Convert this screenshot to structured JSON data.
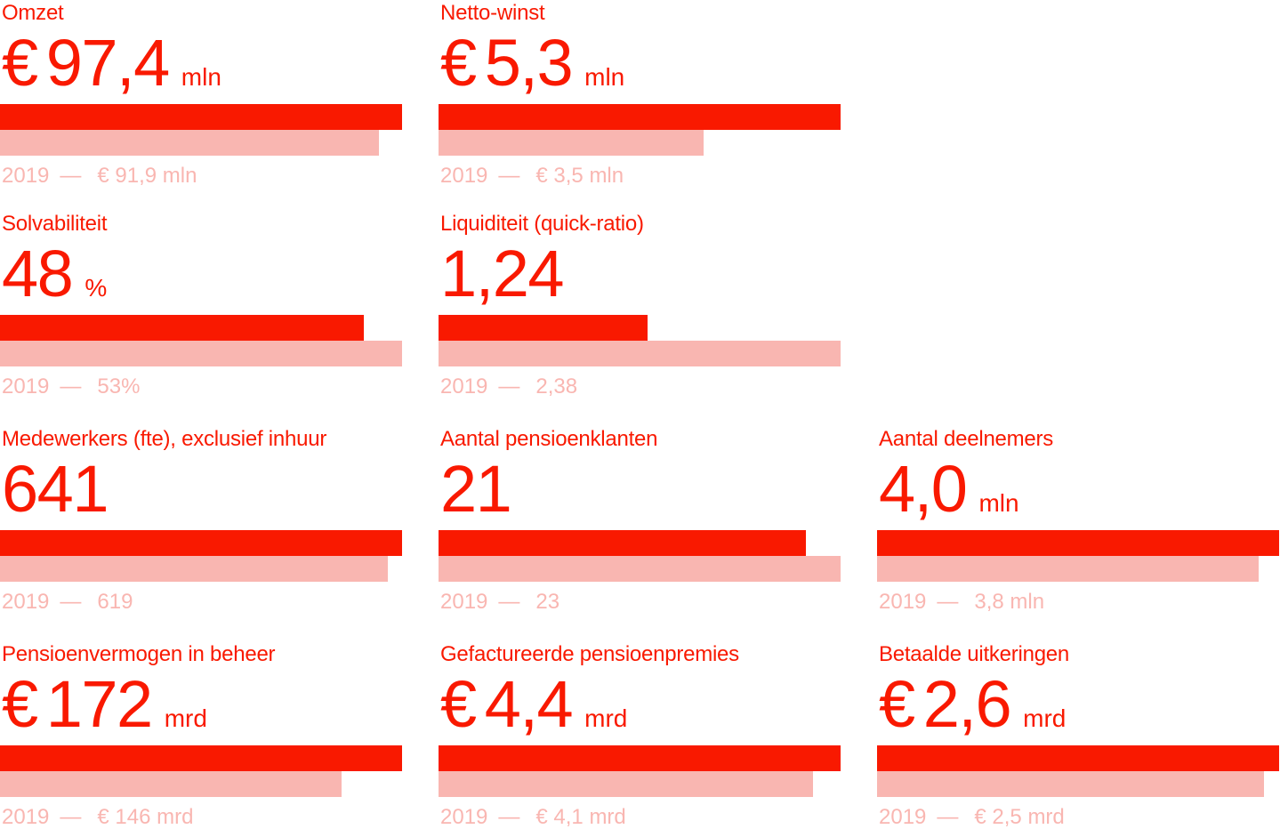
{
  "colors": {
    "accent": "#f91900",
    "accent_light": "#f9b6b1",
    "background": "#ffffff"
  },
  "chart_data": {
    "type": "bar",
    "description": "KPI dashboard of Dutch pension company annual figures; each KPI shows current-year value (bright red bar) versus 2019 value (pink bar), bars scaled to the larger of the two values",
    "comparison_year": "2019",
    "separator": "—",
    "legend_position": "none",
    "grid": "off",
    "kpis": [
      {
        "label": "Omzet",
        "prefix": "€",
        "value_display": "97,4",
        "unit": "mln",
        "current": 97.4,
        "previous": 91.9,
        "previous_display": "€ 91,9 mln",
        "col": 1,
        "row": 1
      },
      {
        "label": "Netto-winst",
        "prefix": "€",
        "value_display": "5,3",
        "unit": "mln",
        "current": 5.3,
        "previous": 3.5,
        "previous_display": "€ 3,5 mln",
        "col": 2,
        "row": 1
      },
      {
        "label": "Solvabiliteit",
        "prefix": "",
        "value_display": "48",
        "unit": "%",
        "current": 48,
        "previous": 53,
        "previous_display": "53%",
        "col": 1,
        "row": 2
      },
      {
        "label": "Liquiditeit (quick-ratio)",
        "prefix": "",
        "value_display": "1,24",
        "unit": "",
        "current": 1.24,
        "previous": 2.38,
        "previous_display": "2,38",
        "col": 2,
        "row": 2
      },
      {
        "label": "Medewerkers (fte), exclusief inhuur",
        "prefix": "",
        "value_display": "641",
        "unit": "",
        "current": 641,
        "previous": 619,
        "previous_display": "619",
        "col": 1,
        "row": 3
      },
      {
        "label": "Aantal pensioenklanten",
        "prefix": "",
        "value_display": "21",
        "unit": "",
        "current": 21,
        "previous": 23,
        "previous_display": "23",
        "col": 2,
        "row": 3
      },
      {
        "label": "Aantal deelnemers",
        "prefix": "",
        "value_display": "4,0",
        "unit": "mln",
        "current": 4.0,
        "previous": 3.8,
        "previous_display": "3,8 mln",
        "col": 3,
        "row": 3
      },
      {
        "label": "Pensioenvermogen in beheer",
        "prefix": "€",
        "value_display": "172",
        "unit": "mrd",
        "current": 172,
        "previous": 146,
        "previous_display": "€ 146 mrd",
        "col": 1,
        "row": 4
      },
      {
        "label": "Gefactureerde pensioenpremies",
        "prefix": "€",
        "value_display": "4,4",
        "unit": "mrd",
        "current": 4.4,
        "previous": 4.1,
        "previous_display": "€ 4,1 mrd",
        "col": 2,
        "row": 4
      },
      {
        "label": "Betaalde uitkeringen",
        "prefix": "€",
        "value_display": "2,6",
        "unit": "mrd",
        "current": 2.6,
        "previous": 2.5,
        "previous_display": "€ 2,5 mrd",
        "col": 3,
        "row": 4
      }
    ]
  }
}
